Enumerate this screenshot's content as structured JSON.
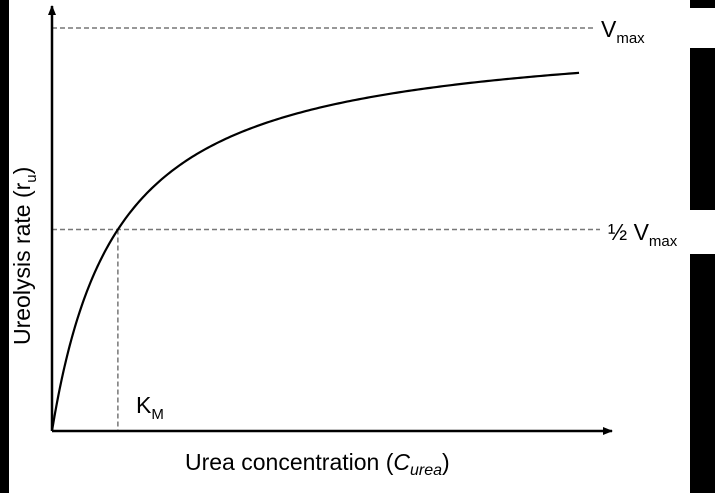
{
  "chart_data": {
    "type": "line",
    "title": "",
    "xlabel": "Urea concentration (",
    "xlabel_var": "C",
    "xlabel_sub": "urea",
    "xlabel_close": ")",
    "ylabel": "Ureolysis rate (r",
    "ylabel_sub": "u",
    "ylabel_close": ")",
    "curve": "Michaelis–Menten saturation",
    "km": 1,
    "vmax": 1,
    "xlim": [
      0,
      8.5
    ],
    "ylim": [
      0,
      1.02
    ],
    "series": [
      {
        "x": [
          0,
          0.1,
          0.25,
          0.5,
          0.75,
          1,
          1.5,
          2,
          3,
          4,
          5,
          6,
          7,
          8
        ],
        "y": [
          0,
          0.091,
          0.2,
          0.333,
          0.429,
          0.5,
          0.6,
          0.667,
          0.75,
          0.8,
          0.833,
          0.857,
          0.875,
          0.889
        ]
      }
    ],
    "reference_lines": {
      "vmax_label": "V",
      "vmax_sub": "max",
      "half_vmax_label": "½ V",
      "half_vmax_sub": "max",
      "km_label": "K",
      "km_sub": "M"
    },
    "axes": "arrows, no ticks",
    "grid": false
  }
}
